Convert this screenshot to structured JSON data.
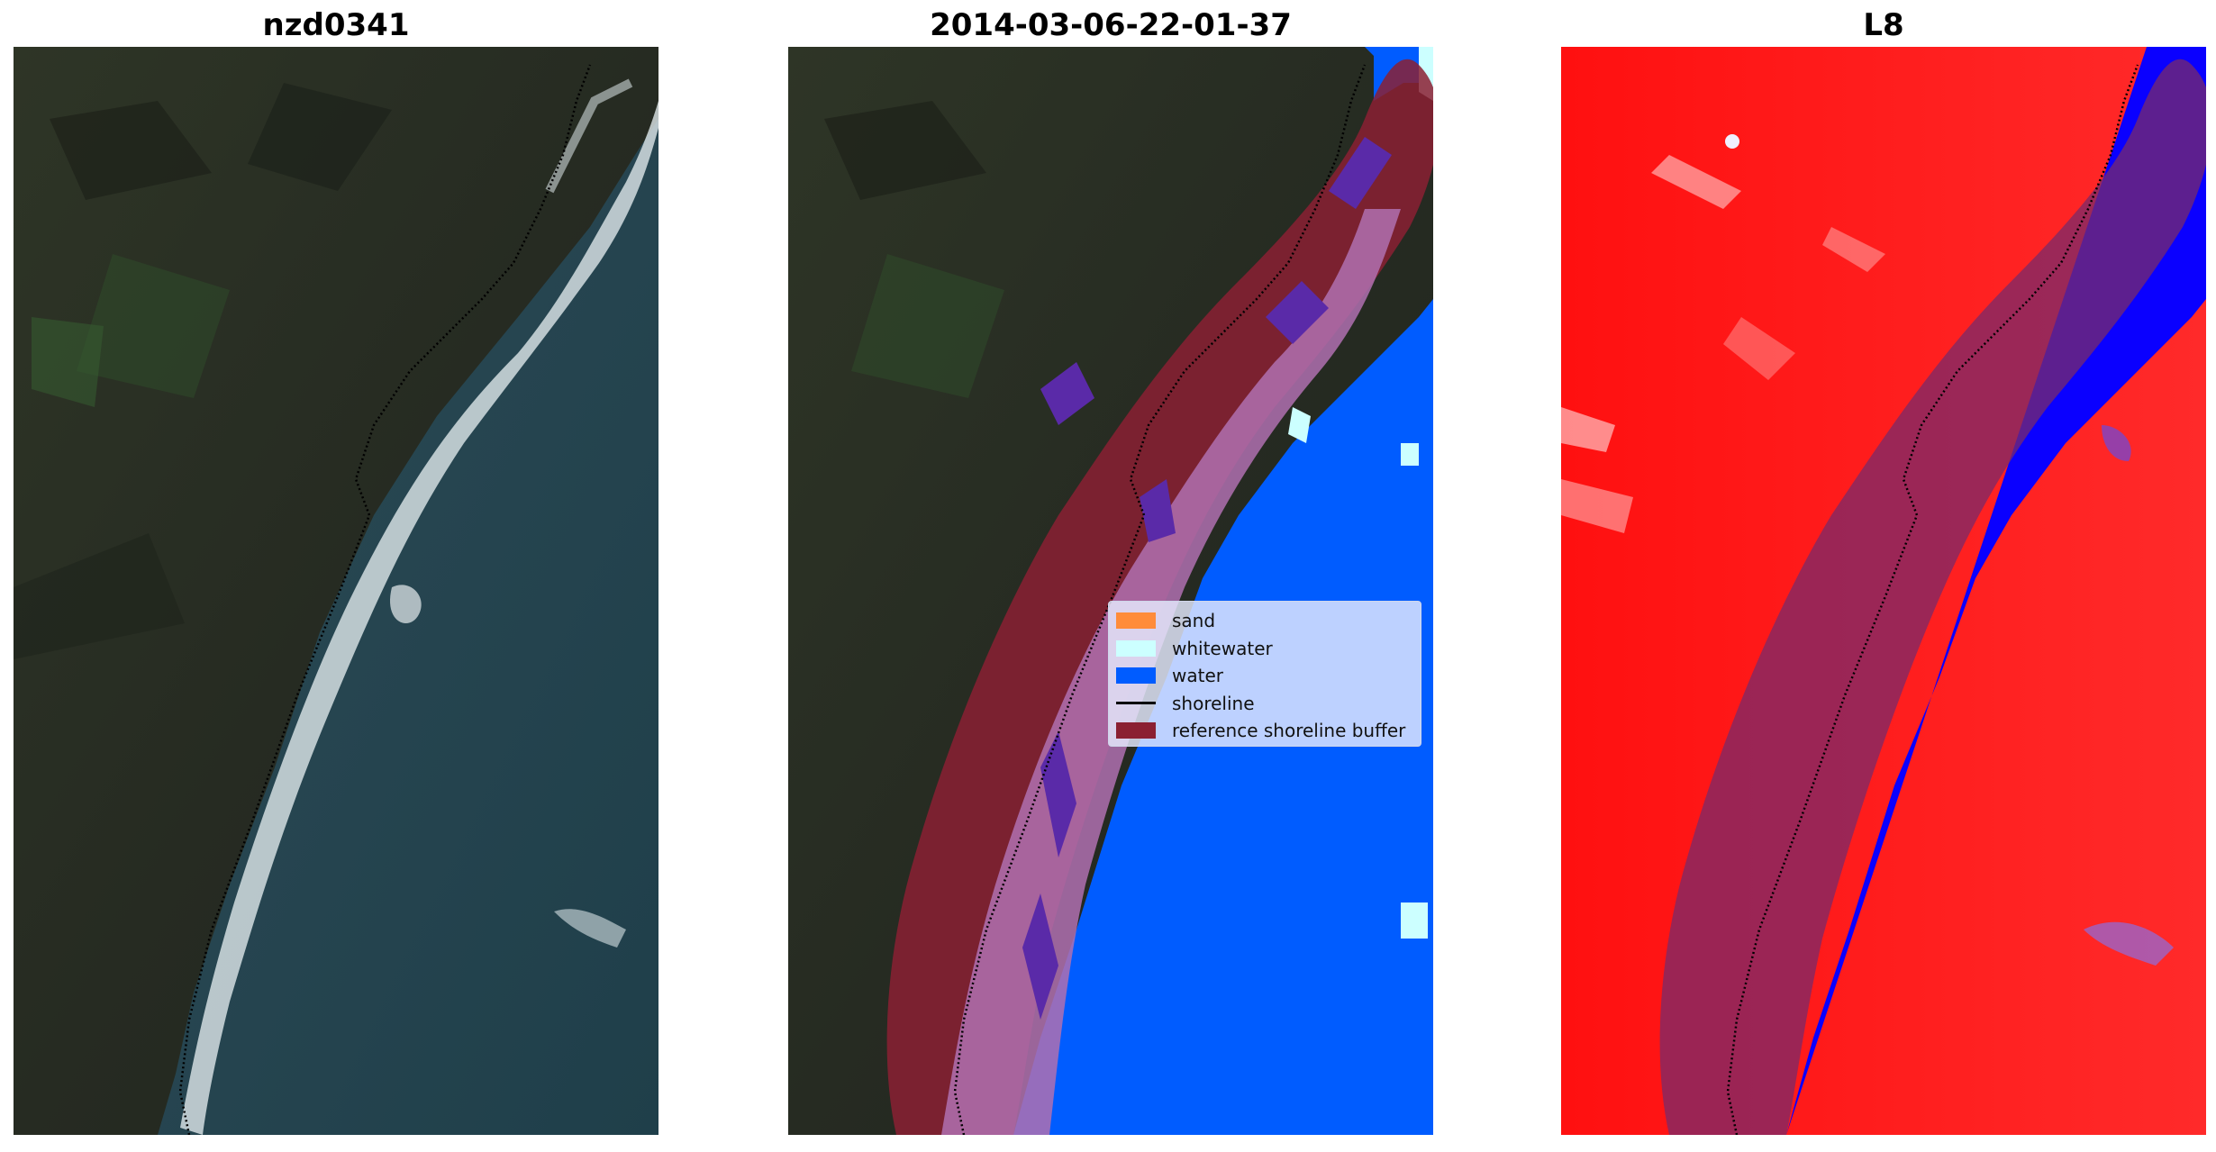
{
  "panels": [
    {
      "title": "nzd0341",
      "kind": "rgb"
    },
    {
      "title": "2014-03-06-22-01-37",
      "kind": "classified"
    },
    {
      "title": "L8",
      "kind": "index"
    }
  ],
  "legend": {
    "items": [
      {
        "label": "sand",
        "color": "#ff8c3a"
      },
      {
        "label": "whitewater",
        "color": "#ccffff"
      },
      {
        "label": "water",
        "color": "#005cff"
      },
      {
        "label": "shoreline",
        "color": "#000000"
      },
      {
        "label": "reference shoreline buffer",
        "color": "#8b2032"
      }
    ]
  },
  "colors": {
    "water_class": "#005cff",
    "buffer": "#8b2032",
    "index_land": "#ff1010",
    "index_water": "#0a00ff"
  }
}
